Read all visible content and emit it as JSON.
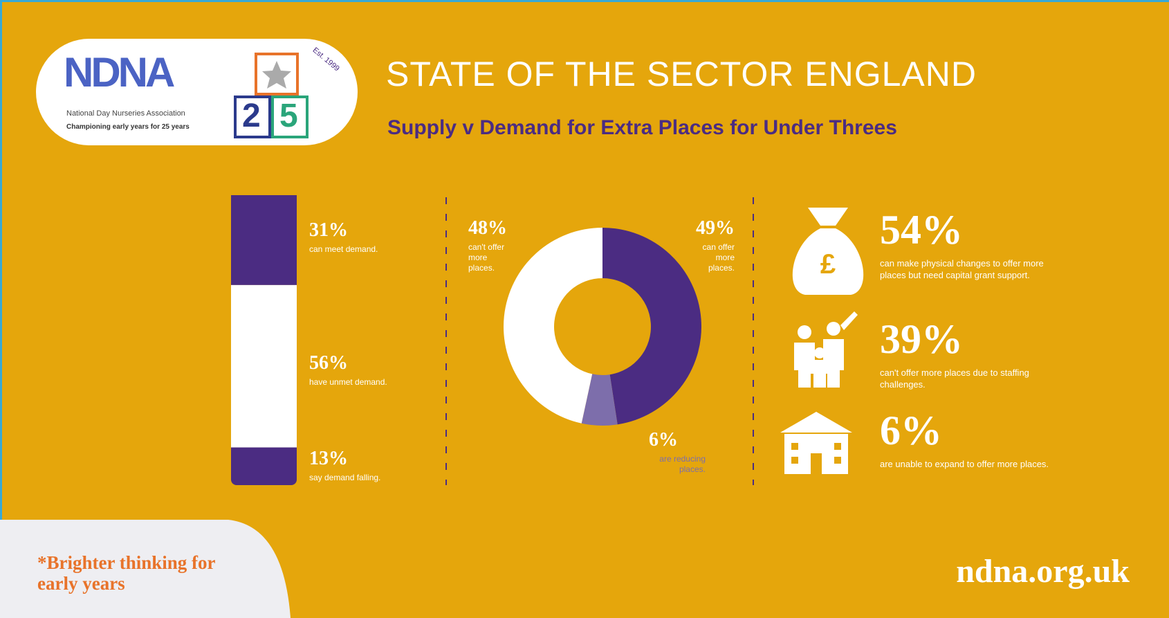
{
  "header": {
    "logo_text": "NDNA",
    "logo_org": "National Day Nurseries Association",
    "logo_tagline": "Championing early years for 25 years",
    "logo_est": "Est. 1999",
    "logo_blocks": [
      "2",
      "5"
    ],
    "title": "STATE OF THE SECTOR ENGLAND",
    "subtitle": "Supply v Demand for Extra Places for Under Threes"
  },
  "chart_data": [
    {
      "type": "stacked-bar",
      "values": [
        31,
        56,
        13
      ],
      "value_labels": [
        "31%",
        "56%",
        "13%"
      ],
      "categories": [
        "can meet demand.",
        "have unmet demand.",
        "say demand falling."
      ],
      "colors": [
        "#4b2c82",
        "#ffffff",
        "#4b2c82"
      ]
    },
    {
      "type": "donut",
      "values": [
        49,
        6,
        48
      ],
      "value_labels": [
        "49%",
        "6%",
        "48%"
      ],
      "categories": [
        "can offer more places.",
        "are reducing places.",
        "can't offer more places."
      ],
      "colors": [
        "#4b2c82",
        "#7d6eab",
        "#ffffff"
      ]
    }
  ],
  "stats": [
    {
      "value": 54,
      "value_label": "54%",
      "text": "can make physical changes to offer more places but need capital grant support."
    },
    {
      "value": 39,
      "value_label": "39%",
      "text": "can't offer more places due to staffing challenges."
    },
    {
      "value": 6,
      "value_label": "6%",
      "text": "are unable to expand to offer more places."
    }
  ],
  "footer": {
    "tagline": "*Brighter thinking for early years",
    "url": "ndna.org.uk"
  }
}
